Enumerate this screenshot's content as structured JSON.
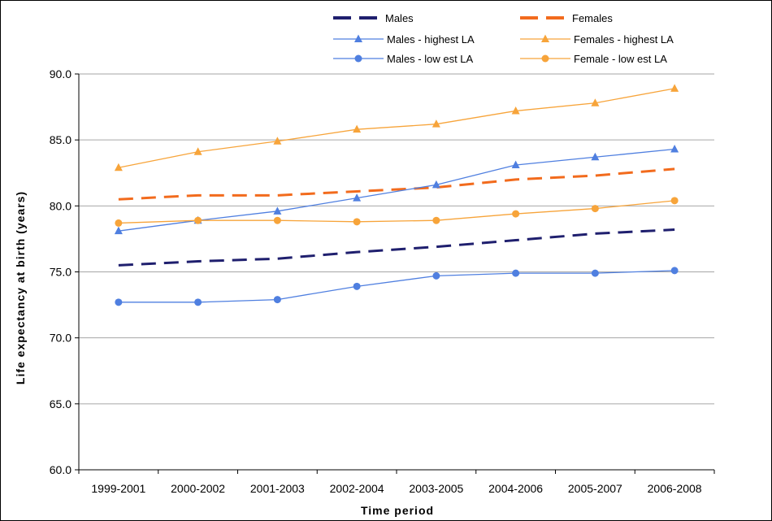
{
  "chart_data": {
    "type": "line",
    "xlabel": "Time period",
    "ylabel": "Life expectancy at birth (years)",
    "categories": [
      "1999-2001",
      "2000-2002",
      "2001-2003",
      "2002-2004",
      "2003-2005",
      "2004-2006",
      "2005-2007",
      "2006-2008"
    ],
    "ylim": [
      60,
      90
    ],
    "yticks": [
      "60.0",
      "65.0",
      "70.0",
      "75.0",
      "80.0",
      "85.0",
      "90.0"
    ],
    "grid": true,
    "legend_position": "top",
    "series": [
      {
        "name": "Males",
        "style": "dashed",
        "marker": "none",
        "color": "#1f1f6e",
        "values": [
          75.5,
          75.8,
          76.0,
          76.5,
          76.9,
          77.4,
          77.9,
          78.2
        ]
      },
      {
        "name": "Females",
        "style": "dashed",
        "marker": "none",
        "color": "#f26b1d",
        "values": [
          80.5,
          80.8,
          80.8,
          81.1,
          81.4,
          82.0,
          82.3,
          82.8
        ]
      },
      {
        "name": "Males - highest LA",
        "style": "solid",
        "marker": "triangle",
        "color": "#4f7fe0",
        "values": [
          78.1,
          78.9,
          79.6,
          80.6,
          81.6,
          83.1,
          83.7,
          84.3
        ]
      },
      {
        "name": "Females - highest LA",
        "style": "solid",
        "marker": "triangle",
        "color": "#f7a43a",
        "values": [
          82.9,
          84.1,
          84.9,
          85.8,
          86.2,
          87.2,
          87.8,
          88.9
        ]
      },
      {
        "name": "Males - low est LA",
        "style": "solid",
        "marker": "circle",
        "color": "#4f7fe0",
        "values": [
          72.7,
          72.7,
          72.9,
          73.9,
          74.7,
          74.9,
          74.9,
          75.1
        ]
      },
      {
        "name": "Female - low est LA",
        "style": "solid",
        "marker": "circle",
        "color": "#f7a43a",
        "values": [
          78.7,
          78.9,
          78.9,
          78.8,
          78.9,
          79.4,
          79.8,
          80.4
        ]
      }
    ]
  }
}
